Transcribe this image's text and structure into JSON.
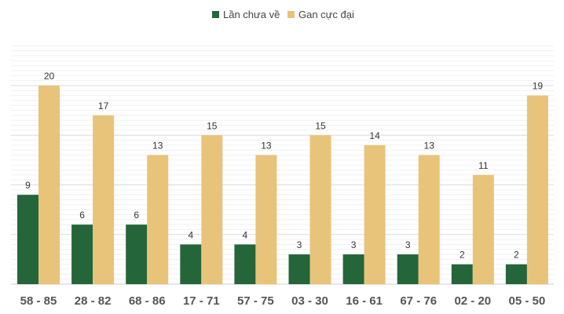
{
  "chart_data": {
    "type": "bar",
    "title": "",
    "xlabel": "",
    "ylabel": "",
    "ylim": [
      0,
      24
    ],
    "grid": true,
    "legend_position": "top-center",
    "categories": [
      "58 - 85",
      "28 - 82",
      "68 - 86",
      "17 - 71",
      "57 - 75",
      "03 - 30",
      "16 - 61",
      "67 - 76",
      "02 - 20",
      "05 - 50"
    ],
    "series": [
      {
        "name": "Lần chưa về",
        "color": "#25653a",
        "values": [
          9,
          6,
          6,
          4,
          4,
          3,
          3,
          3,
          2,
          2
        ]
      },
      {
        "name": "Gan cực đại",
        "color": "#e8c47a",
        "values": [
          20,
          17,
          13,
          15,
          13,
          15,
          14,
          13,
          11,
          19
        ]
      }
    ]
  }
}
